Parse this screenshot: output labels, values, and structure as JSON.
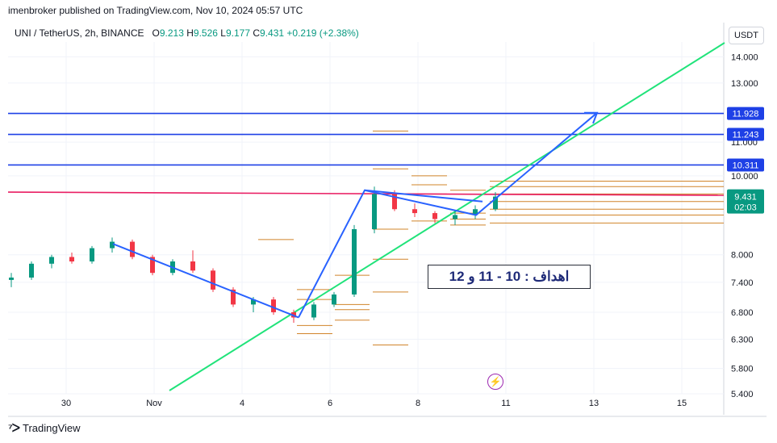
{
  "header": {
    "publisher": "imenbroker published on TradingView.com, Nov 10, 2024 05:57 UTC",
    "symbol": "UNI / TetherUS, 2h, BINANCE",
    "ohlc": {
      "o_label": "O",
      "o": "9.213",
      "h_label": "H",
      "h": "9.526",
      "l_label": "L",
      "l": "9.177",
      "c_label": "C",
      "c": "9.431",
      "change": "+0.219 (+2.38%)"
    }
  },
  "currency_button": "USDT",
  "footer": {
    "brand": "TradingView"
  },
  "annotation": {
    "text": "اهداف : 10 - 11 و 12"
  },
  "colors": {
    "up": "#089981",
    "down": "#f23645",
    "level": "#1e40e6",
    "trend": "#2962ff",
    "green_line": "#20e37a",
    "pink_line": "#e91e63",
    "orange": "#d1842a"
  },
  "chart_data": {
    "type": "candlestick",
    "y_scale": "log",
    "ylim": [
      5.4,
      14.6
    ],
    "y_ticks": [
      "14.000",
      "13.000",
      "11.000",
      "10.000",
      "8.000",
      "7.400",
      "6.800",
      "6.300",
      "5.800",
      "5.400"
    ],
    "x_ticks": [
      "30",
      "Nov",
      "4",
      "6",
      "8",
      "11",
      "13",
      "15"
    ],
    "price_labels": [
      {
        "value": "11.928",
        "num": 11.928
      },
      {
        "value": "11.243",
        "num": 11.243
      },
      {
        "value": "10.311",
        "num": 10.311
      }
    ],
    "last_price": {
      "value": "9.431",
      "countdown": "02:03",
      "num": 9.431
    },
    "resistance_levels": [
      11.928,
      11.243,
      10.311
    ],
    "key_level": 9.55,
    "candles": [
      {
        "t": "Oct 29",
        "o": 7.45,
        "h": 7.6,
        "l": 7.3,
        "c": 7.5
      },
      {
        "t": "Oct 29",
        "o": 7.5,
        "h": 7.85,
        "l": 7.45,
        "c": 7.8
      },
      {
        "t": "Oct 30",
        "o": 7.8,
        "h": 8.0,
        "l": 7.7,
        "c": 7.95
      },
      {
        "t": "Oct 30",
        "o": 7.95,
        "h": 8.05,
        "l": 7.8,
        "c": 7.85
      },
      {
        "t": "Oct 31",
        "o": 7.85,
        "h": 8.2,
        "l": 7.8,
        "c": 8.15
      },
      {
        "t": "Oct 31",
        "o": 8.15,
        "h": 8.4,
        "l": 8.05,
        "c": 8.3
      },
      {
        "t": "Nov 1",
        "o": 8.3,
        "h": 8.35,
        "l": 7.9,
        "c": 7.95
      },
      {
        "t": "Nov 1",
        "o": 7.95,
        "h": 8.0,
        "l": 7.55,
        "c": 7.6
      },
      {
        "t": "Nov 2",
        "o": 7.6,
        "h": 7.9,
        "l": 7.55,
        "c": 7.85
      },
      {
        "t": "Nov 2",
        "o": 7.85,
        "h": 8.1,
        "l": 7.6,
        "c": 7.65
      },
      {
        "t": "Nov 3",
        "o": 7.65,
        "h": 7.7,
        "l": 7.2,
        "c": 7.25
      },
      {
        "t": "Nov 3",
        "o": 7.25,
        "h": 7.3,
        "l": 6.9,
        "c": 6.95
      },
      {
        "t": "Nov 4",
        "o": 6.95,
        "h": 7.1,
        "l": 6.8,
        "c": 7.05
      },
      {
        "t": "Nov 4",
        "o": 7.05,
        "h": 7.1,
        "l": 6.75,
        "c": 6.8
      },
      {
        "t": "Nov 5",
        "o": 6.8,
        "h": 6.85,
        "l": 6.6,
        "c": 6.7
      },
      {
        "t": "Nov 5",
        "o": 6.7,
        "h": 7.0,
        "l": 6.65,
        "c": 6.95
      },
      {
        "t": "Nov 6",
        "o": 6.95,
        "h": 7.2,
        "l": 6.9,
        "c": 7.15
      },
      {
        "t": "Nov 6",
        "o": 7.15,
        "h": 8.7,
        "l": 7.1,
        "c": 8.6
      },
      {
        "t": "Nov 7",
        "o": 8.6,
        "h": 9.7,
        "l": 8.5,
        "c": 9.5
      },
      {
        "t": "Nov 7",
        "o": 9.5,
        "h": 9.6,
        "l": 9.05,
        "c": 9.1
      },
      {
        "t": "Nov 8",
        "o": 9.1,
        "h": 9.25,
        "l": 8.9,
        "c": 9.0
      },
      {
        "t": "Nov 8",
        "o": 9.0,
        "h": 9.05,
        "l": 8.75,
        "c": 8.85
      },
      {
        "t": "Nov 9",
        "o": 8.85,
        "h": 9.05,
        "l": 8.7,
        "c": 8.95
      },
      {
        "t": "Nov 9",
        "o": 8.95,
        "h": 9.2,
        "l": 8.85,
        "c": 9.1
      },
      {
        "t": "Nov 10",
        "o": 9.1,
        "h": 9.55,
        "l": 9.05,
        "c": 9.43
      }
    ]
  }
}
